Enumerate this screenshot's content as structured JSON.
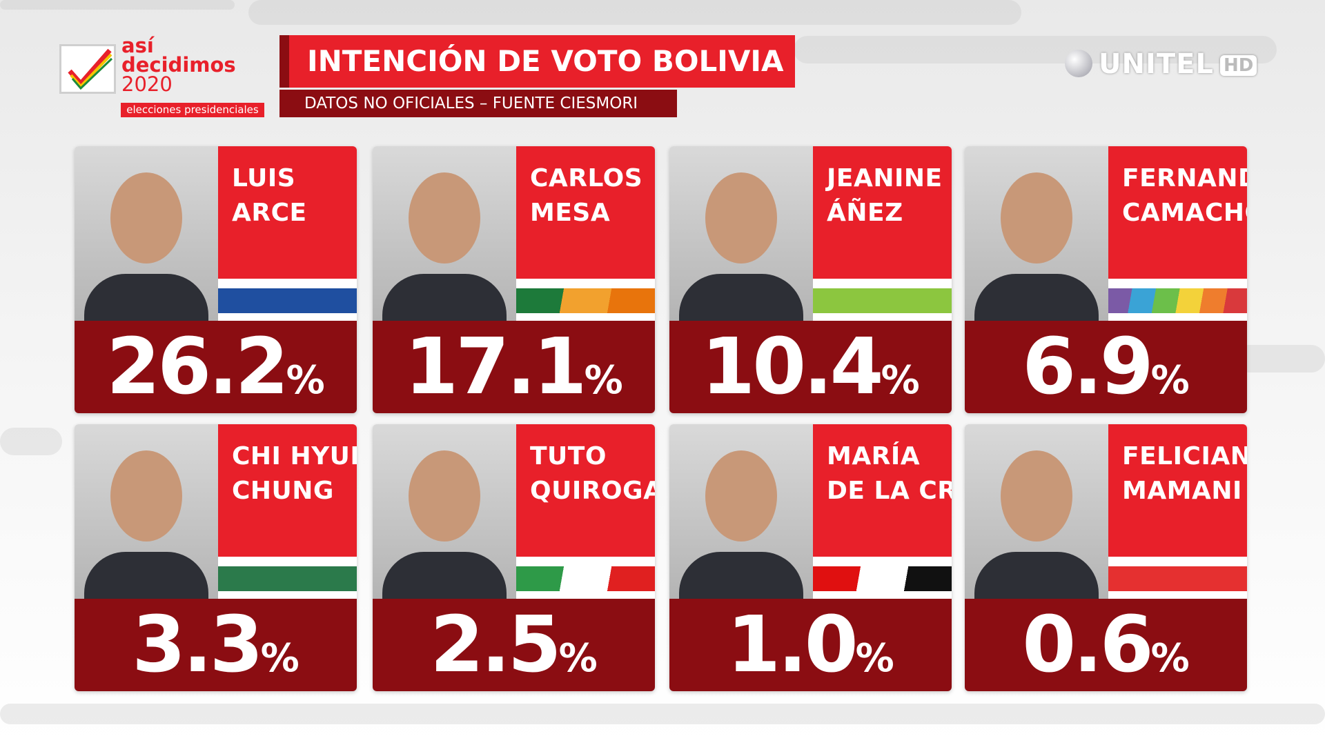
{
  "header": {
    "logo_line1": "así",
    "logo_line2": "decidimos",
    "logo_year": "2020",
    "logo_tagline": "elecciones presidenciales",
    "title": "INTENCIÓN DE VOTO BOLIVIA",
    "subtitle": "DATOS NO OFICIALES – FUENTE CIESMORI",
    "network": "UNITEL",
    "network_badge": "HD"
  },
  "candidates": [
    {
      "name_line1": "LUIS",
      "name_line2": "ARCE",
      "percent": "26.2%",
      "stripe": [
        "#1f4fa0"
      ]
    },
    {
      "name_line1": "CARLOS",
      "name_line2": "MESA",
      "percent": "17.1%",
      "stripe": [
        "#1d7a3a",
        "#f2a12e",
        "#e8740c"
      ]
    },
    {
      "name_line1": "JEANINE",
      "name_line2": "ÁÑEZ",
      "percent": "10.4%",
      "stripe": [
        "#8cc63f"
      ]
    },
    {
      "name_line1": "FERNANDO",
      "name_line2": "CAMACHO",
      "percent": "6.9%",
      "stripe": [
        "#7b5aa6",
        "#3aa3d6",
        "#6cbf4a",
        "#f3d23a",
        "#ef7d2d",
        "#d9393c"
      ]
    },
    {
      "name_line1": "CHI HYUN",
      "name_line2": "CHUNG",
      "percent": "3.3%",
      "stripe": [
        "#2b7a4b"
      ]
    },
    {
      "name_line1": "TUTO",
      "name_line2": "QUIROGA",
      "percent": "2.5%",
      "stripe": [
        "#2e9a48",
        "#ffffff",
        "#e02020"
      ]
    },
    {
      "name_line1": "MARÍA",
      "name_line2": "DE LA CRUZ",
      "percent": "1.0%",
      "stripe": [
        "#e01010",
        "#ffffff",
        "#111111"
      ]
    },
    {
      "name_line1": "FELICIANO",
      "name_line2": "MAMANI",
      "percent": "0.6%",
      "stripe": [
        "#e53030"
      ]
    }
  ]
}
